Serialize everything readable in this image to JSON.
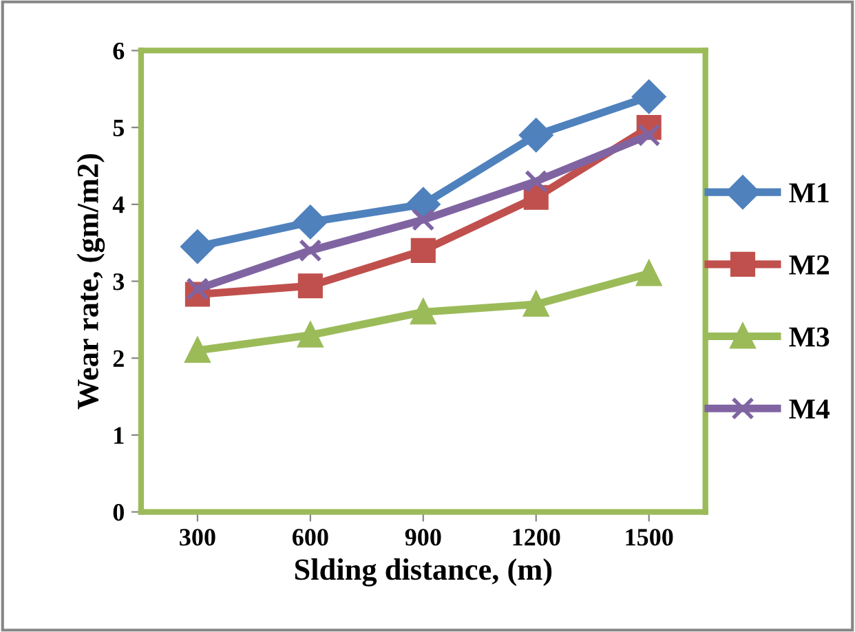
{
  "chart_data": {
    "type": "line",
    "xlabel": "Slding distance, (m)",
    "ylabel": "Wear rate, (gm/m2)",
    "categories": [
      "300",
      "600",
      "900",
      "1200",
      "1500"
    ],
    "ylim": [
      0,
      6
    ],
    "yticks": [
      0,
      1,
      2,
      3,
      4,
      5,
      6
    ],
    "grid": false,
    "legend": "right",
    "series": [
      {
        "name": "M1",
        "color": "#4f81bd",
        "marker": "diamond",
        "values": [
          3.45,
          3.77,
          4.0,
          4.9,
          5.4
        ]
      },
      {
        "name": "M2",
        "color": "#c0504d",
        "marker": "square",
        "values": [
          2.83,
          2.94,
          3.4,
          4.09,
          5.0
        ]
      },
      {
        "name": "M3",
        "color": "#9bbb59",
        "marker": "triangle",
        "values": [
          2.1,
          2.3,
          2.6,
          2.7,
          3.1
        ]
      },
      {
        "name": "M4",
        "color": "#8064a2",
        "marker": "cross",
        "values": [
          2.9,
          3.4,
          3.8,
          4.3,
          4.9
        ]
      }
    ]
  }
}
